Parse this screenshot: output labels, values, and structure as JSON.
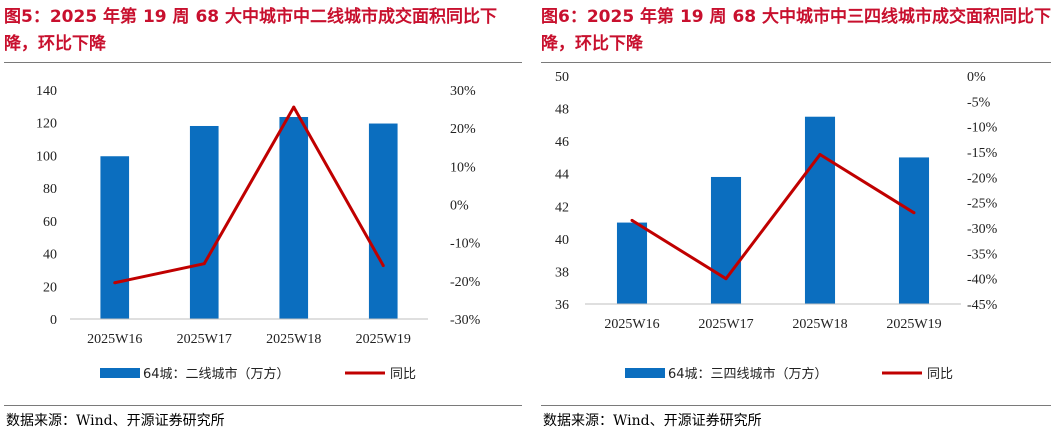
{
  "charts": [
    {
      "title": "图5：2025 年第 19 周 68 大中城市中二线城市成交面积同比下降，环比下降",
      "source": "数据来源：Wind、开源证券研究所"
    },
    {
      "title": "图6：2025 年第 19 周 68 大中城市中三四线城市成交面积同比下降，环比下降",
      "source": "数据来源：Wind、开源证券研究所"
    }
  ],
  "colors": {
    "bar": "#0b6ebf",
    "line": "#c00000",
    "title": "#c8102e"
  },
  "chart_data": [
    {
      "type": "bar",
      "categories": [
        "2025W16",
        "2025W17",
        "2025W18",
        "2025W19"
      ],
      "series": [
        {
          "name": "64城：二线城市（万方）",
          "type": "bar",
          "axis": "left",
          "values": [
            99.5,
            118,
            123.5,
            119.5
          ]
        },
        {
          "name": "同比",
          "type": "line",
          "axis": "right",
          "values": [
            -20.5,
            -15.5,
            25.5,
            -16
          ]
        }
      ],
      "y_left": {
        "min": 0,
        "max": 140,
        "step": 20,
        "ticks": [
          "0",
          "20",
          "40",
          "60",
          "80",
          "100",
          "120",
          "140"
        ]
      },
      "y_right": {
        "min": -30,
        "max": 30,
        "step": 10,
        "ticks": [
          "-30%",
          "-20%",
          "-10%",
          "0%",
          "10%",
          "20%",
          "30%"
        ]
      },
      "legend_position": "bottom",
      "grid": false
    },
    {
      "type": "bar",
      "categories": [
        "2025W16",
        "2025W17",
        "2025W18",
        "2025W19"
      ],
      "series": [
        {
          "name": "64城：三四线城市（万方）",
          "type": "bar",
          "axis": "left",
          "values": [
            41,
            43.8,
            47.5,
            45
          ]
        },
        {
          "name": "同比",
          "type": "line",
          "axis": "right",
          "values": [
            -28.5,
            -40,
            -15.5,
            -27
          ]
        }
      ],
      "y_left": {
        "min": 36,
        "max": 50,
        "step": 2,
        "ticks": [
          "36",
          "38",
          "40",
          "42",
          "44",
          "46",
          "48",
          "50"
        ]
      },
      "y_right": {
        "min": -45,
        "max": 0,
        "step": 5,
        "ticks": [
          "-45%",
          "-40%",
          "-35%",
          "-30%",
          "-25%",
          "-20%",
          "-15%",
          "-10%",
          "-5%",
          "0%"
        ]
      },
      "legend_position": "bottom",
      "grid": false
    }
  ]
}
